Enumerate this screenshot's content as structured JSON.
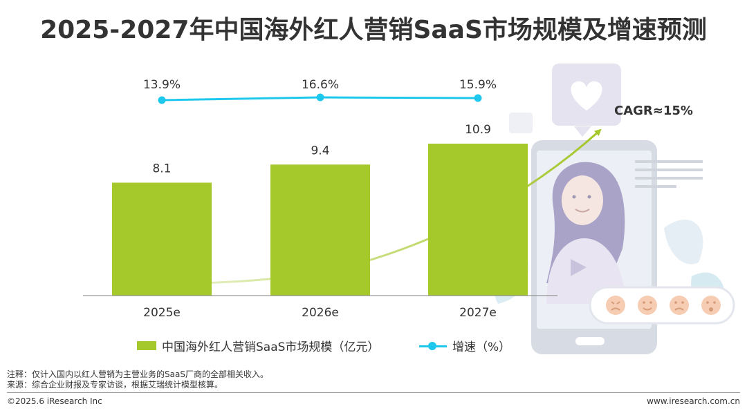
{
  "title": "2025-2027年中国海外红人营销SaaS市场规模及增速预测",
  "chart_data": {
    "type": "bar",
    "categories": [
      "2025e",
      "2026e",
      "2027e"
    ],
    "series": [
      {
        "name": "中国海外红人营销SaaS市场规模（亿元）",
        "type": "bar",
        "values": [
          8.1,
          9.4,
          10.9
        ],
        "labels": [
          "8.1",
          "9.4",
          "10.9"
        ],
        "color": "#a5c82b"
      },
      {
        "name": "增速（%）",
        "type": "line",
        "values": [
          13.9,
          16.6,
          15.9
        ],
        "labels": [
          "13.9%",
          "16.6%",
          "15.9%"
        ],
        "color": "#1ec8ec"
      }
    ],
    "annotation": "CAGR≈15%",
    "grid": false,
    "legend_position": "bottom"
  },
  "colors": {
    "bar": "#a5c82b",
    "line": "#1ec8ec",
    "trend_arrow": "#a5c82b"
  },
  "notes": [
    "注释：仅计入国内以红人营销为主营业务的SaaS厂商的全部相关收入。",
    "来源：综合企业财报及专家访谈，根据艾瑞统计模型核算。"
  ],
  "footer": {
    "copyright": "©2025.6 iResearch Inc",
    "website": "www.iresearch.com.cn"
  },
  "decoration": {
    "illustration": "phone-influencer-illustration",
    "icons": [
      "heart-icon",
      "emoji-rating-icons"
    ]
  }
}
